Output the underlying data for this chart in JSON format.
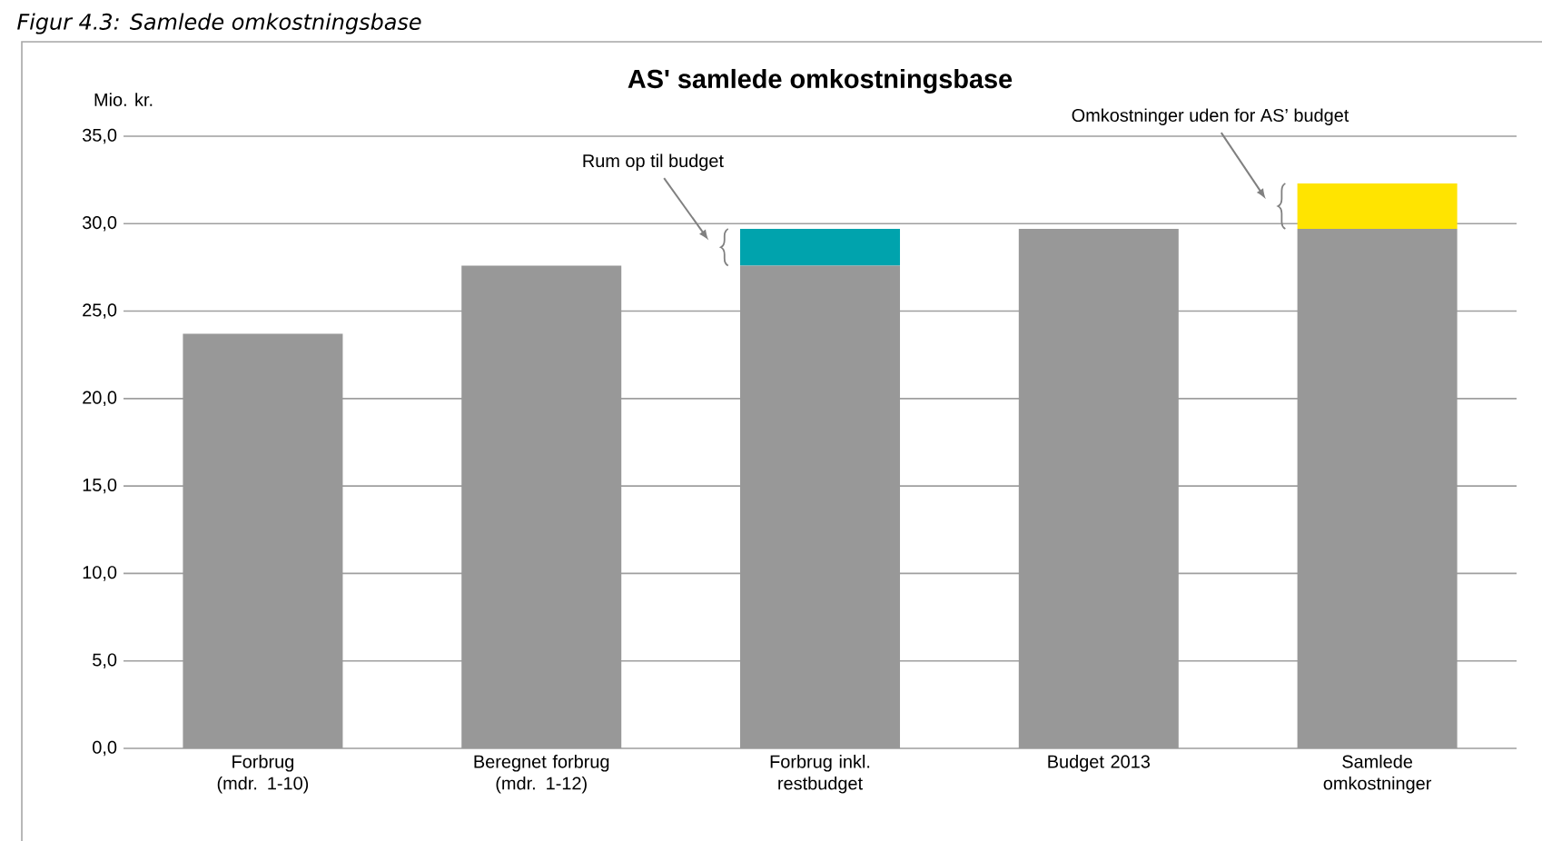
{
  "chart_data": {
    "type": "bar",
    "title": "AS' samlede omkostningsbase",
    "ylabel": "Mio. kr.",
    "categories": [
      "Forbrug (mdr. 1-10)",
      "Beregnet forbrug (mdr. 1-12)",
      "Forbrug inkl. restbudget",
      "Budget 2013",
      "Samlede omkostninger"
    ],
    "series": [
      {
        "color": "#989898",
        "values": [
          23.7,
          27.6,
          27.6,
          29.7,
          29.7
        ]
      },
      {
        "color": "#00a3ad",
        "values": [
          null,
          null,
          2.1,
          null,
          null
        ]
      },
      {
        "color": "#ffe400",
        "values": [
          null,
          null,
          null,
          null,
          2.6
        ]
      }
    ],
    "stacked": true,
    "ylim": [
      0,
      35
    ],
    "yticks": [
      {
        "value": 0,
        "label": "0,0"
      },
      {
        "value": 5,
        "label": "5,0"
      },
      {
        "value": 10,
        "label": "10,0"
      },
      {
        "value": 15,
        "label": "15,0"
      },
      {
        "value": 20,
        "label": "20,0"
      },
      {
        "value": 25,
        "label": "25,0"
      },
      {
        "value": 30,
        "label": "30,0"
      },
      {
        "value": 35,
        "label": "35,0"
      }
    ],
    "grid": "y",
    "annotations": [
      "Figur 4.3: Samlede omkostningsbase",
      "Rum op til budget",
      "Omkostninger uden for AS’ budget"
    ]
  }
}
